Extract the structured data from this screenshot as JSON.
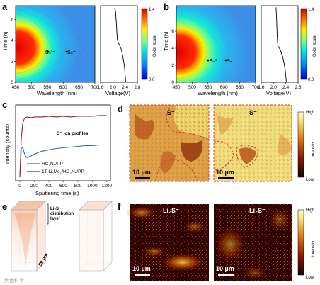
{
  "panels": {
    "a": {
      "letter": "a"
    },
    "b": {
      "letter": "b"
    },
    "c": {
      "letter": "c"
    },
    "d": {
      "letter": "d"
    },
    "e": {
      "letter": "e"
    },
    "f": {
      "letter": "f"
    }
  },
  "contour": {
    "xlabel": "Wavelength (nm)",
    "ylabel": "Time (h)",
    "xticks": [
      "450",
      "500",
      "550",
      "600",
      "650",
      "700"
    ],
    "yticks": [
      "0",
      "2",
      "4",
      "6"
    ],
    "species1": "S₄²⁻",
    "species2": "S₃⁻",
    "colorscale_label": "Color scale",
    "colorscale_ticks": [
      "1.4",
      "0.0"
    ]
  },
  "voltage": {
    "xlabel": "Voltage(V)",
    "xticks": [
      "1.6",
      "2.0",
      "2.4",
      "2.8"
    ]
  },
  "tof": {
    "ylabel": "Intensity (counts)",
    "xlabel": "Sputtering time (s)",
    "xticks": [
      "0",
      "200",
      "400",
      "600",
      "800",
      "1000",
      "1200"
    ],
    "annotation": "S⁻ ion profiles",
    "legend": [
      "HC₃N₄/PP",
      "1T-LiₓMo₂/HC₃N₄/PP"
    ]
  },
  "maps_d": {
    "label_left": "S⁻",
    "label_right": "S⁻",
    "scale_left": "10 µm",
    "scale_right": "10 µm",
    "bar_high": "High",
    "bar_low": "Low",
    "bar_label": "Intensity"
  },
  "maps_f": {
    "label_left": "Li₂S⁻",
    "label_right": "Li₂S⁻",
    "scale_left": "10 µm",
    "scale_right": "10 µm",
    "bar_high": "High",
    "bar_low": "Low",
    "bar_label": "Intensity"
  },
  "panel_e": {
    "annotation_line1": "Li₂S",
    "annotation_line2": "distribution",
    "annotation_line3": "layer",
    "depth_label": "50 µm"
  },
  "watermark": "大他科学",
  "chart_data": [
    {
      "type": "heatmap",
      "panel": "a",
      "xlabel": "Wavelength (nm)",
      "ylabel": "Time (h)",
      "xlim": [
        450,
        700
      ],
      "ylim": [
        0,
        7.3
      ],
      "colorscale": [
        0.0,
        1.4
      ],
      "annotations": [
        {
          "text": "S₄²⁻",
          "x": 595,
          "y": 3.3
        },
        {
          "text": "S₃⁻",
          "x": 618,
          "y": 3.3
        }
      ]
    },
    {
      "type": "line",
      "panel": "a-voltage",
      "xlabel": "Voltage(V)",
      "xlim": [
        1.6,
        2.8
      ],
      "ylim": [
        0,
        7.3
      ],
      "x": [
        2.42,
        2.38,
        2.33,
        2.3,
        2.28,
        2.22,
        2.15,
        2.13,
        2.12,
        2.1,
        2.09,
        2.08,
        2.07,
        2.06
      ],
      "y": [
        0.0,
        1.5,
        2.4,
        2.8,
        3.1,
        3.5,
        4.0,
        4.8,
        5.5,
        6.2,
        6.7,
        6.9,
        7.0,
        7.1
      ]
    },
    {
      "type": "heatmap",
      "panel": "b",
      "xlabel": "Wavelength (nm)",
      "ylabel": "Time (h)",
      "xlim": [
        450,
        700
      ],
      "ylim": [
        0,
        9
      ],
      "colorscale": [
        0.0,
        1.4
      ],
      "annotations": [
        {
          "text": "S₄²⁻",
          "x": 562,
          "y": 3.3
        },
        {
          "text": "S₃⁻",
          "x": 612,
          "y": 3.3
        }
      ]
    },
    {
      "type": "line",
      "panel": "b-voltage",
      "xlabel": "Voltage(V)",
      "xlim": [
        1.6,
        2.8
      ],
      "ylim": [
        0,
        9
      ],
      "x": [
        2.42,
        2.38,
        2.33,
        2.3,
        2.26,
        2.22,
        2.14,
        2.12,
        2.11,
        2.1,
        2.09,
        2.08
      ],
      "y": [
        0.0,
        1.5,
        2.5,
        3.0,
        3.4,
        3.8,
        4.3,
        5.5,
        6.5,
        7.5,
        8.3,
        8.8
      ]
    },
    {
      "type": "line",
      "panel": "c",
      "xlabel": "Sputtering time (s)",
      "ylabel": "Intensity (counts)",
      "xlim": [
        0,
        1250
      ],
      "series": [
        {
          "name": "HC₃N₄/PP",
          "color": "#2e6fae",
          "x": [
            0,
            20,
            40,
            60,
            80,
            100,
            150,
            200,
            300,
            400,
            500,
            600,
            700,
            800,
            900,
            1000,
            1100,
            1200
          ],
          "y": [
            0.05,
            0.45,
            0.48,
            0.4,
            0.35,
            0.33,
            0.35,
            0.38,
            0.42,
            0.44,
            0.46,
            0.47,
            0.48,
            0.49,
            0.5,
            0.5,
            0.51,
            0.51
          ]
        },
        {
          "name": "1T-LiₓMo₂/HC₃N₄/PP",
          "color": "#a01f24",
          "x": [
            0,
            20,
            40,
            60,
            80,
            100,
            150,
            200,
            300,
            400,
            500,
            600,
            700,
            800,
            900,
            1000,
            1100,
            1200
          ],
          "y": [
            0.05,
            0.6,
            0.82,
            0.88,
            0.9,
            0.91,
            0.9,
            0.91,
            0.91,
            0.92,
            0.91,
            0.92,
            0.91,
            0.92,
            0.92,
            0.92,
            0.93,
            0.93
          ]
        }
      ]
    }
  ]
}
